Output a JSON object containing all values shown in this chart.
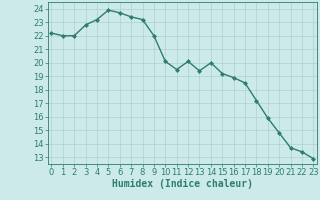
{
  "x": [
    0,
    1,
    2,
    3,
    4,
    5,
    6,
    7,
    8,
    9,
    10,
    11,
    12,
    13,
    14,
    15,
    16,
    17,
    18,
    19,
    20,
    21,
    22,
    23
  ],
  "y": [
    22.2,
    22.0,
    22.0,
    22.8,
    23.2,
    23.9,
    23.7,
    23.4,
    23.2,
    22.0,
    20.1,
    19.5,
    20.1,
    19.4,
    20.0,
    19.2,
    18.9,
    18.5,
    17.2,
    15.9,
    14.8,
    13.7,
    13.4,
    12.9
  ],
  "line_color": "#2e7d6e",
  "marker": "D",
  "marker_size": 2.0,
  "bg_color": "#cceaea",
  "grid_color": "#b0d0d0",
  "xlabel": "Humidex (Indice chaleur)",
  "xlabel_fontsize": 7.0,
  "tick_fontsize": 6.0,
  "ylim": [
    12.5,
    24.5
  ],
  "yticks": [
    13,
    14,
    15,
    16,
    17,
    18,
    19,
    20,
    21,
    22,
    23,
    24
  ],
  "xticks": [
    0,
    1,
    2,
    3,
    4,
    5,
    6,
    7,
    8,
    9,
    10,
    11,
    12,
    13,
    14,
    15,
    16,
    17,
    18,
    19,
    20,
    21,
    22,
    23
  ],
  "linewidth": 1.0,
  "xlim": [
    -0.3,
    23.3
  ]
}
